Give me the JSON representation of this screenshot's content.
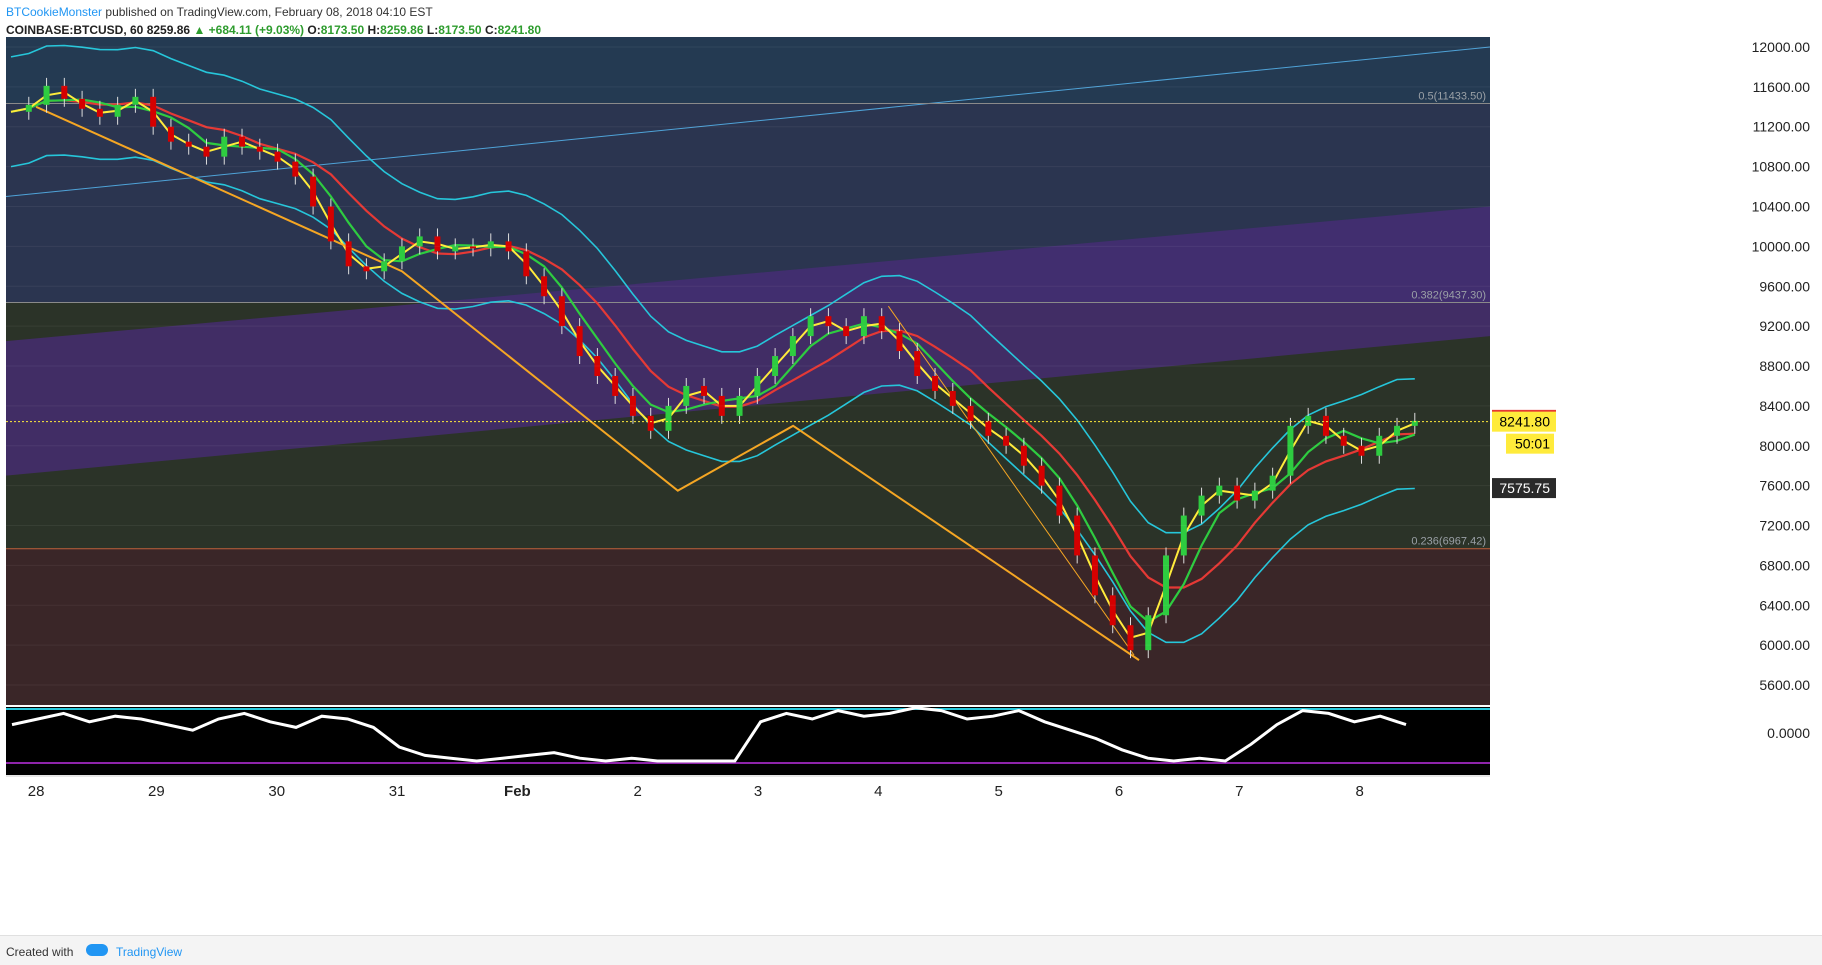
{
  "header": {
    "author": "BTCookieMonster",
    "published_text": "published on TradingView.com, February 08, 2018 04:10 EST",
    "symbol": "COINBASE:BTCUSD, 60",
    "last": "8259.86",
    "change": "▲ +684.11 (+9.03%)",
    "o_label": "O:",
    "o_value": "8173.50",
    "h_label": "H:",
    "h_value": "8259.86",
    "l_label": "L:",
    "l_value": "8173.50",
    "c_label": "C:",
    "c_value": "8241.80"
  },
  "footer": {
    "created_with": "Created with",
    "brand": "TradingView"
  },
  "colors": {
    "price_tag_high": "#e53935",
    "price_tag_close": "#ffeb3b",
    "price_tag_prev": "#2a2a2a",
    "countdown": "#ffeb3b",
    "up_candle": "#2ecc40",
    "down_candle": "#d50000"
  },
  "chart_data": {
    "type": "candlestick",
    "y_axis": {
      "min": 5400,
      "max": 12100,
      "tick_labels": [
        "12000.00",
        "11600.00",
        "11200.00",
        "10800.00",
        "10400.00",
        "10000.00",
        "9600.00",
        "9200.00",
        "8800.00",
        "8400.00",
        "8000.00",
        "7600.00",
        "7200.00",
        "6800.00",
        "6400.00",
        "6000.00",
        "5600.00"
      ],
      "ticks": [
        12000,
        11600,
        11200,
        10800,
        10400,
        10000,
        9600,
        9200,
        8800,
        8400,
        8000,
        7600,
        7200,
        6800,
        6400,
        6000,
        5600
      ]
    },
    "x_axis": {
      "labels": [
        "28",
        "29",
        "30",
        "31",
        "Feb",
        "2",
        "3",
        "4",
        "5",
        "6",
        "7",
        "8"
      ],
      "positions": [
        0,
        24,
        48,
        72,
        96,
        120,
        144,
        168,
        192,
        216,
        240,
        264
      ],
      "range": [
        -6,
        290
      ]
    },
    "price_tags": {
      "high": "8259.86",
      "close": "8241.80",
      "countdown": "50:01",
      "prev": "7575.75"
    },
    "fib_levels": [
      {
        "label": "0.5(11433.50)",
        "value": 11433.5
      },
      {
        "label": "0.382(9437.30)",
        "value": 9437.3
      },
      {
        "label": "0.236(6967.42)",
        "value": 6967.42
      }
    ],
    "oscillator": {
      "label": "0.0000",
      "values": [
        0.3,
        0.5,
        0.7,
        0.4,
        0.6,
        0.5,
        0.3,
        0.1,
        0.5,
        0.7,
        0.4,
        0.2,
        0.6,
        0.5,
        0.2,
        -0.5,
        -0.8,
        -0.9,
        -1.0,
        -0.9,
        -0.8,
        -0.7,
        -0.9,
        -1.0,
        -0.9,
        -1.0,
        -1.0,
        -1.0,
        -1.0,
        0.4,
        0.7,
        0.5,
        0.8,
        0.6,
        0.7,
        0.9,
        0.8,
        0.5,
        0.6,
        0.8,
        0.4,
        0.1,
        -0.2,
        -0.6,
        -0.9,
        -1.0,
        -0.9,
        -1.0,
        -0.4,
        0.3,
        0.8,
        0.7,
        0.4,
        0.6,
        0.3
      ]
    },
    "price": [
      11350,
      11420,
      11610,
      11480,
      11380,
      11300,
      11420,
      11500,
      11200,
      11050,
      11000,
      10900,
      11100,
      11000,
      10950,
      10850,
      10700,
      10400,
      10050,
      9800,
      9750,
      9850,
      10000,
      10100,
      9950,
      10000,
      9980,
      10050,
      9950,
      9700,
      9500,
      9200,
      8900,
      8700,
      8500,
      8300,
      8150,
      8400,
      8600,
      8500,
      8300,
      8500,
      8700,
      8900,
      9100,
      9300,
      9200,
      9100,
      9300,
      9150,
      8950,
      8700,
      8550,
      8400,
      8250,
      8100,
      8000,
      7800,
      7600,
      7300,
      6900,
      6500,
      6200,
      5950,
      6300,
      6900,
      7300,
      7500,
      7600,
      7450,
      7550,
      7700,
      8200,
      8300,
      8100,
      8000,
      7900,
      8100,
      8200,
      8250
    ]
  }
}
